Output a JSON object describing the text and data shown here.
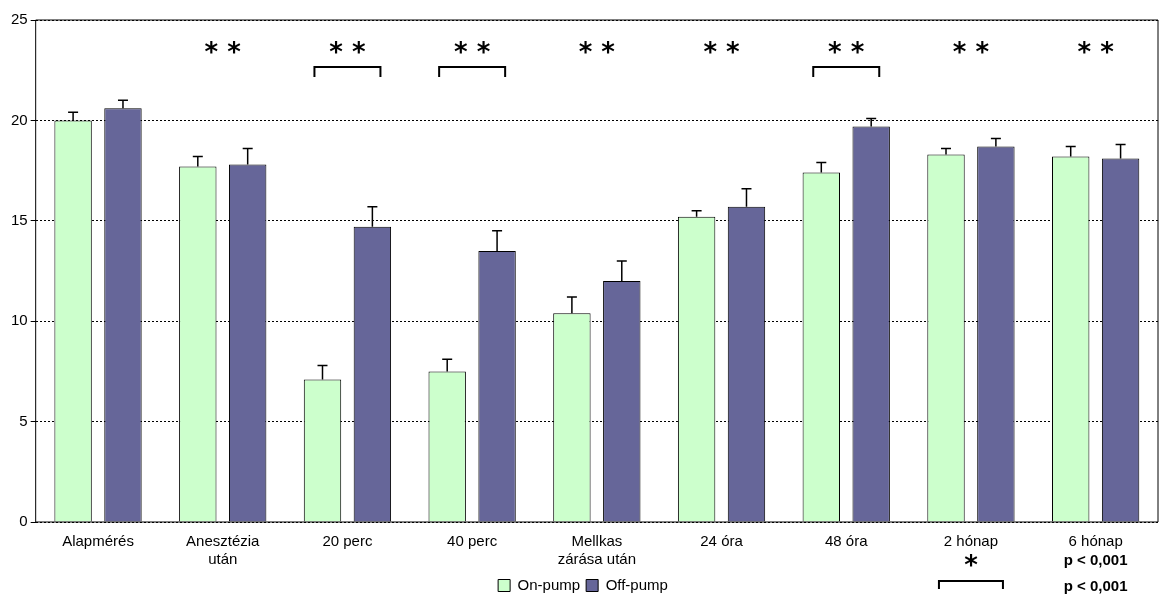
{
  "chart_data": {
    "type": "bar",
    "categories": [
      "Alapmérés",
      "Anesztézia után",
      "20 perc",
      "40 perc",
      "Mellkas zárása után",
      "24 óra",
      "48 óra",
      "2 hónap",
      "6 hónap"
    ],
    "series": [
      {
        "name": "On-pump",
        "color": "#ccffcc",
        "values": [
          20.0,
          17.7,
          7.1,
          7.5,
          10.4,
          15.2,
          17.4,
          18.3,
          18.2
        ],
        "errors": [
          [
            20.0,
            20.4
          ],
          [
            17.7,
            18.2
          ],
          [
            7.1,
            7.8
          ],
          [
            7.5,
            8.1
          ],
          [
            10.4,
            11.2
          ],
          [
            15.2,
            15.5
          ],
          [
            17.4,
            17.9
          ],
          [
            18.3,
            18.6
          ],
          [
            18.2,
            18.7
          ]
        ]
      },
      {
        "name": "Off-pump",
        "color": "#666699",
        "values": [
          20.6,
          17.8,
          14.7,
          13.5,
          12.0,
          15.7,
          19.7,
          18.7,
          18.1
        ],
        "errors": [
          [
            20.6,
            21.0
          ],
          [
            17.8,
            18.6
          ],
          [
            14.7,
            15.7
          ],
          [
            13.5,
            14.5
          ],
          [
            12.0,
            13.0
          ],
          [
            15.7,
            16.6
          ],
          [
            19.7,
            20.1
          ],
          [
            18.7,
            19.1
          ],
          [
            18.1,
            18.8
          ]
        ]
      }
    ],
    "ylim": [
      0,
      25
    ],
    "yticks": [
      0,
      5,
      10,
      15,
      20,
      25
    ],
    "grid": "y",
    "legend": "bottom",
    "annotations": [
      "* *",
      "* *",
      "* *",
      "* *",
      "* *",
      "* *",
      "* *",
      "* *",
      "*",
      "p < 0,001",
      "p < 0,001"
    ]
  }
}
